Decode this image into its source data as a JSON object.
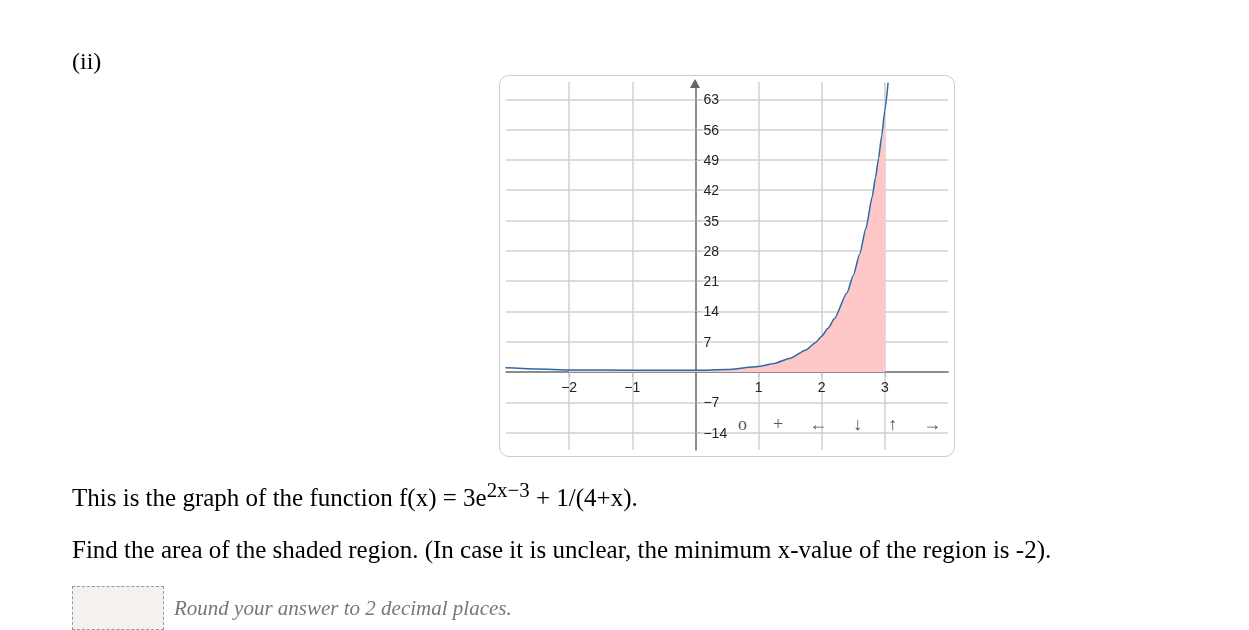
{
  "chart_data": {
    "type": "line",
    "title": "(ii)",
    "annotations": [
      "This is the graph of the function f(x) = 3e$^{2x−3}$ + 1/(4+x).",
      "Find the area of the shaded region. (In case it is unclear, the minimum x-value of the region is -2).",
      "Round your answer to 2 decimal places.",
      "o",
      "+",
      "←",
      "↓",
      "↑",
      "→"
    ],
    "series": [
      {
        "type": "area",
        "color": "#ffc8c8",
        "x": [
          -2,
          -1,
          0,
          0.5,
          1,
          1.25,
          1.5,
          1.75,
          1.9,
          2,
          2.1,
          2.2,
          2.4,
          2.5,
          2.6,
          2.7,
          2.8,
          2.85,
          2.9,
          2.95,
          3
        ],
        "values": [
          0.5,
          0.4,
          0.4,
          0.6,
          1.3,
          2.0,
          3.2,
          5.1,
          6.8,
          8.3,
          10.1,
          12.3,
          18.3,
          22.3,
          27.2,
          33.2,
          40.5,
          44.8,
          49.4,
          54.6,
          60.4
        ]
      },
      {
        "type": "line",
        "color": "#2a6aa6",
        "x": [
          -3,
          -2.5,
          -2,
          -1,
          0,
          0.5,
          1,
          1.25,
          1.5,
          1.75,
          1.9,
          2,
          2.1,
          2.2,
          2.4,
          2.5,
          2.6,
          2.7,
          2.8,
          2.85,
          2.9,
          2.95,
          3,
          3.05
        ],
        "values": [
          1.0,
          0.7,
          0.5,
          0.4,
          0.4,
          0.6,
          1.3,
          2.0,
          3.2,
          5.1,
          6.8,
          8.3,
          10.1,
          12.3,
          18.3,
          22.3,
          27.2,
          33.2,
          40.5,
          44.8,
          49.4,
          54.6,
          60.4,
          66.7
        ]
      }
    ],
    "xlim": [
      -3,
      4
    ],
    "xticks": [
      {
        "value": -2,
        "label": "−2"
      },
      {
        "value": -1,
        "label": "−1"
      },
      1,
      2,
      3
    ],
    "ylim": [
      -18,
      67
    ],
    "yticks": [
      {
        "value": -14,
        "label": "−14"
      },
      {
        "value": -7,
        "label": "−7"
      },
      7,
      14,
      21,
      28,
      35,
      42,
      49,
      56,
      63
    ],
    "grid": true,
    "marker": "none",
    "line_style": "solid"
  }
}
